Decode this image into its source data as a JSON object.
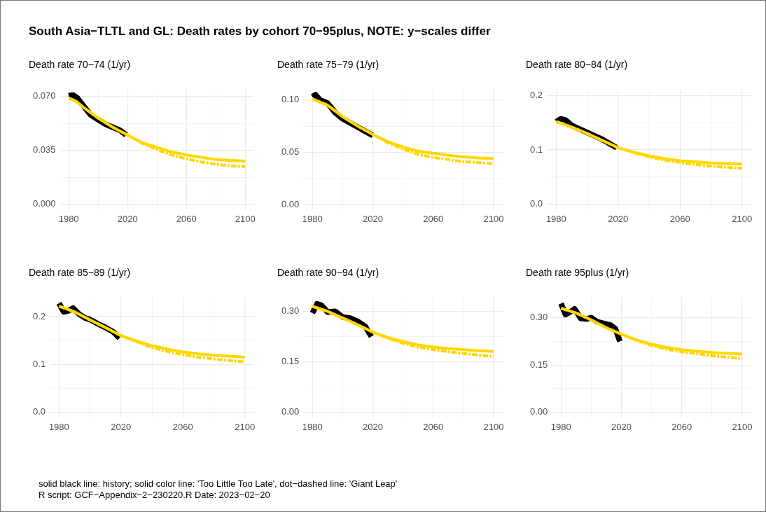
{
  "chart_data": [
    {
      "type": "other",
      "title": "South Asia−TLTL and GL: Death rates by cohort 70−95plus, NOTE: y−scales differ",
      "annotations": [
        "solid black line: history; solid color line: 'Too Little Too Late', dot−dashed line: 'Giant Leap'",
        "R script: GCF−Appendix−2−230220.R Date: 2023−02−20"
      ]
    },
    {
      "type": "line",
      "title": "Death rate 70−74 (1/yr)",
      "grid": true,
      "marker": "none",
      "xlim": [
        1974,
        2106
      ],
      "xticks": [
        1980,
        {
          "value": 2000,
          "label": null
        },
        2020,
        {
          "value": 2040,
          "label": null
        },
        2060,
        {
          "value": 2080,
          "label": null
        },
        2100
      ],
      "ylim": [
        -0.0036,
        0.0746
      ],
      "yticks": [
        {
          "value": 0,
          "label": "0.000"
        },
        {
          "value": 0.0175,
          "label": null
        },
        0.035,
        {
          "value": 0.0525,
          "label": null
        },
        {
          "value": 0.07,
          "label": "0.070"
        }
      ],
      "series": [
        {
          "color": "#000000",
          "line_style": "solid",
          "x": [
            1980,
            1983,
            1986,
            1990,
            1995,
            2000,
            2005,
            2010,
            2015,
            2019
          ],
          "values": [
            0.0705,
            0.071,
            0.069,
            0.064,
            0.058,
            0.055,
            0.052,
            0.05,
            0.048,
            0.045
          ]
        },
        {
          "color": "#ffd700",
          "line_style": "solid",
          "x": [
            1980,
            1985,
            1990,
            2000,
            2010,
            2020,
            2030,
            2040,
            2050,
            2060,
            2070,
            2080,
            2090,
            2100
          ],
          "values": [
            0.069,
            0.067,
            0.063,
            0.056,
            0.05,
            0.045,
            0.04,
            0.037,
            0.034,
            0.032,
            0.0305,
            0.029,
            0.0285,
            0.028
          ]
        },
        {
          "color": "#ffd700",
          "line_style": "dashed",
          "x": [
            1980,
            1985,
            1990,
            2000,
            2010,
            2020,
            2030,
            2040,
            2050,
            2060,
            2070,
            2080,
            2090,
            2100
          ],
          "values": [
            0.069,
            0.067,
            0.063,
            0.056,
            0.05,
            0.045,
            0.0395,
            0.0355,
            0.032,
            0.0295,
            0.0275,
            0.026,
            0.025,
            0.0245
          ]
        }
      ]
    },
    {
      "type": "line",
      "title": "Death rate 75−79 (1/yr)",
      "grid": true,
      "marker": "none",
      "xlim": [
        1974,
        2106
      ],
      "xticks": [
        1980,
        {
          "value": 2000,
          "label": null
        },
        2020,
        {
          "value": 2040,
          "label": null
        },
        2060,
        {
          "value": 2080,
          "label": null
        },
        2100
      ],
      "ylim": [
        -0.005,
        0.11
      ],
      "yticks": [
        {
          "value": 0,
          "label": "0.00"
        },
        {
          "value": 0.025,
          "label": null
        },
        0.05,
        {
          "value": 0.075,
          "label": null
        },
        {
          "value": 0.1,
          "label": "0.10"
        }
      ],
      "series": [
        {
          "color": "#000000",
          "line_style": "solid",
          "x": [
            1980,
            1982,
            1985,
            1990,
            1995,
            2000,
            2005,
            2010,
            2015,
            2020
          ],
          "values": [
            0.103,
            0.105,
            0.1,
            0.097,
            0.088,
            0.082,
            0.078,
            0.074,
            0.07,
            0.066
          ]
        },
        {
          "color": "#ffd700",
          "line_style": "solid",
          "x": [
            1980,
            1990,
            2000,
            2010,
            2020,
            2030,
            2040,
            2050,
            2060,
            2070,
            2080,
            2090,
            2100
          ],
          "values": [
            0.101,
            0.095,
            0.084,
            0.075,
            0.067,
            0.06,
            0.055,
            0.051,
            0.049,
            0.047,
            0.0455,
            0.0445,
            0.044
          ]
        },
        {
          "color": "#ffd700",
          "line_style": "dashed",
          "x": [
            1980,
            1990,
            2000,
            2010,
            2020,
            2030,
            2040,
            2050,
            2060,
            2070,
            2080,
            2090,
            2100
          ],
          "values": [
            0.101,
            0.095,
            0.084,
            0.075,
            0.067,
            0.059,
            0.053,
            0.048,
            0.045,
            0.043,
            0.041,
            0.04,
            0.039
          ]
        }
      ]
    },
    {
      "type": "line",
      "title": "Death rate 80−84 (1/yr)",
      "grid": true,
      "marker": "none",
      "xlim": [
        1974,
        2106
      ],
      "xticks": [
        1980,
        {
          "value": 2000,
          "label": null
        },
        2020,
        {
          "value": 2040,
          "label": null
        },
        2060,
        {
          "value": 2080,
          "label": null
        },
        2100
      ],
      "ylim": [
        -0.01,
        0.211
      ],
      "yticks": [
        {
          "value": 0,
          "label": "0.0"
        },
        {
          "value": 0.05,
          "label": null
        },
        0.1,
        {
          "value": 0.15,
          "label": null
        },
        0.2
      ],
      "series": [
        {
          "color": "#000000",
          "line_style": "solid",
          "x": [
            1980,
            1983,
            1986,
            1990,
            2000,
            2010,
            2019
          ],
          "values": [
            0.152,
            0.157,
            0.155,
            0.145,
            0.132,
            0.119,
            0.104
          ]
        },
        {
          "color": "#ffd700",
          "line_style": "solid",
          "x": [
            1980,
            1990,
            2000,
            2010,
            2020,
            2030,
            2040,
            2050,
            2060,
            2070,
            2080,
            2090,
            2100
          ],
          "values": [
            0.152,
            0.142,
            0.13,
            0.117,
            0.104,
            0.096,
            0.089,
            0.084,
            0.08,
            0.078,
            0.076,
            0.075,
            0.074
          ]
        },
        {
          "color": "#ffd700",
          "line_style": "dashed",
          "x": [
            1980,
            1990,
            2000,
            2010,
            2020,
            2030,
            2040,
            2050,
            2060,
            2070,
            2080,
            2090,
            2100
          ],
          "values": [
            0.152,
            0.142,
            0.13,
            0.117,
            0.104,
            0.095,
            0.087,
            0.081,
            0.077,
            0.073,
            0.07,
            0.068,
            0.066
          ]
        }
      ]
    },
    {
      "type": "line",
      "title": "Death rate 85−89 (1/yr)",
      "grid": true,
      "marker": "none",
      "xlim": [
        1974,
        2106
      ],
      "xticks": [
        1980,
        {
          "value": 2000,
          "label": null
        },
        2020,
        {
          "value": 2040,
          "label": null
        },
        2060,
        {
          "value": 2080,
          "label": null
        },
        2100
      ],
      "ylim": [
        -0.012,
        0.24
      ],
      "yticks": [
        {
          "value": 0,
          "label": "0.0"
        },
        {
          "value": 0.05,
          "label": null
        },
        0.1,
        {
          "value": 0.15,
          "label": null
        },
        0.2
      ],
      "series": [
        {
          "color": "#000000",
          "line_style": "solid",
          "x": [
            1980,
            1983,
            1986,
            1989,
            1993,
            1997,
            2000,
            2005,
            2010,
            2015,
            2019
          ],
          "values": [
            0.228,
            0.21,
            0.212,
            0.218,
            0.205,
            0.197,
            0.194,
            0.185,
            0.177,
            0.168,
            0.155
          ]
        },
        {
          "color": "#ffd700",
          "line_style": "solid",
          "x": [
            1980,
            1990,
            2000,
            2010,
            2020,
            2030,
            2040,
            2050,
            2060,
            2070,
            2080,
            2090,
            2100
          ],
          "values": [
            0.222,
            0.21,
            0.193,
            0.177,
            0.16,
            0.149,
            0.139,
            0.132,
            0.126,
            0.122,
            0.119,
            0.117,
            0.115
          ]
        },
        {
          "color": "#ffd700",
          "line_style": "dashed",
          "x": [
            1980,
            1990,
            2000,
            2010,
            2020,
            2030,
            2040,
            2050,
            2060,
            2070,
            2080,
            2090,
            2100
          ],
          "values": [
            0.222,
            0.21,
            0.193,
            0.177,
            0.16,
            0.147,
            0.135,
            0.127,
            0.12,
            0.115,
            0.111,
            0.108,
            0.105
          ]
        }
      ]
    },
    {
      "type": "line",
      "title": "Death rate 90−94 (1/yr)",
      "grid": true,
      "marker": "none",
      "xlim": [
        1974,
        2106
      ],
      "xticks": [
        1980,
        {
          "value": 2000,
          "label": null
        },
        2020,
        {
          "value": 2040,
          "label": null
        },
        2060,
        {
          "value": 2080,
          "label": null
        },
        2100
      ],
      "ylim": [
        -0.016,
        0.341
      ],
      "yticks": [
        {
          "value": 0,
          "label": "0.00"
        },
        {
          "value": 0.075,
          "label": null
        },
        0.15,
        {
          "value": 0.225,
          "label": null
        },
        {
          "value": 0.3,
          "label": "0.30"
        }
      ],
      "series": [
        {
          "color": "#000000",
          "line_style": "solid",
          "x": [
            1980,
            1983,
            1986,
            1990,
            1995,
            2000,
            2005,
            2010,
            2015,
            2019
          ],
          "values": [
            0.295,
            0.322,
            0.318,
            0.298,
            0.3,
            0.283,
            0.28,
            0.27,
            0.255,
            0.225
          ]
        },
        {
          "color": "#ffd700",
          "line_style": "solid",
          "x": [
            1980,
            1990,
            2000,
            2010,
            2020,
            2030,
            2040,
            2050,
            2060,
            2070,
            2080,
            2090,
            2100
          ],
          "values": [
            0.315,
            0.3,
            0.28,
            0.26,
            0.238,
            0.222,
            0.21,
            0.2,
            0.194,
            0.189,
            0.186,
            0.183,
            0.181
          ]
        },
        {
          "color": "#ffd700",
          "line_style": "dashed",
          "x": [
            1980,
            1990,
            2000,
            2010,
            2020,
            2030,
            2040,
            2050,
            2060,
            2070,
            2080,
            2090,
            2100
          ],
          "values": [
            0.315,
            0.3,
            0.28,
            0.26,
            0.238,
            0.22,
            0.205,
            0.194,
            0.186,
            0.18,
            0.175,
            0.17,
            0.166
          ]
        }
      ]
    },
    {
      "type": "line",
      "title": "Death rate 95plus (1/yr)",
      "grid": true,
      "marker": "none",
      "xlim": [
        1974,
        2106
      ],
      "xticks": [
        1980,
        {
          "value": 2000,
          "label": null
        },
        2020,
        {
          "value": 2040,
          "label": null
        },
        2060,
        {
          "value": 2080,
          "label": null
        },
        2100
      ],
      "ylim": [
        -0.017,
        0.364
      ],
      "yticks": [
        {
          "value": 0,
          "label": "0.00"
        },
        {
          "value": 0.075,
          "label": null
        },
        0.15,
        {
          "value": 0.225,
          "label": null
        },
        {
          "value": 0.3,
          "label": "0.30"
        }
      ],
      "series": [
        {
          "color": "#000000",
          "line_style": "solid",
          "x": [
            1980,
            1983,
            1986,
            1989,
            1993,
            1997,
            2000,
            2004,
            2008,
            2013,
            2016,
            2019
          ],
          "values": [
            0.345,
            0.31,
            0.318,
            0.328,
            0.298,
            0.296,
            0.3,
            0.287,
            0.282,
            0.276,
            0.265,
            0.225
          ]
        },
        {
          "color": "#ffd700",
          "line_style": "solid",
          "x": [
            1980,
            1990,
            2000,
            2010,
            2020,
            2030,
            2040,
            2050,
            2060,
            2070,
            2080,
            2090,
            2100
          ],
          "values": [
            0.33,
            0.315,
            0.293,
            0.268,
            0.248,
            0.23,
            0.216,
            0.206,
            0.199,
            0.194,
            0.19,
            0.187,
            0.185
          ]
        },
        {
          "color": "#ffd700",
          "line_style": "dashed",
          "x": [
            1980,
            1990,
            2000,
            2010,
            2020,
            2030,
            2040,
            2050,
            2060,
            2070,
            2080,
            2090,
            2100
          ],
          "values": [
            0.33,
            0.315,
            0.293,
            0.268,
            0.248,
            0.228,
            0.212,
            0.2,
            0.192,
            0.186,
            0.18,
            0.175,
            0.17
          ]
        }
      ]
    }
  ]
}
